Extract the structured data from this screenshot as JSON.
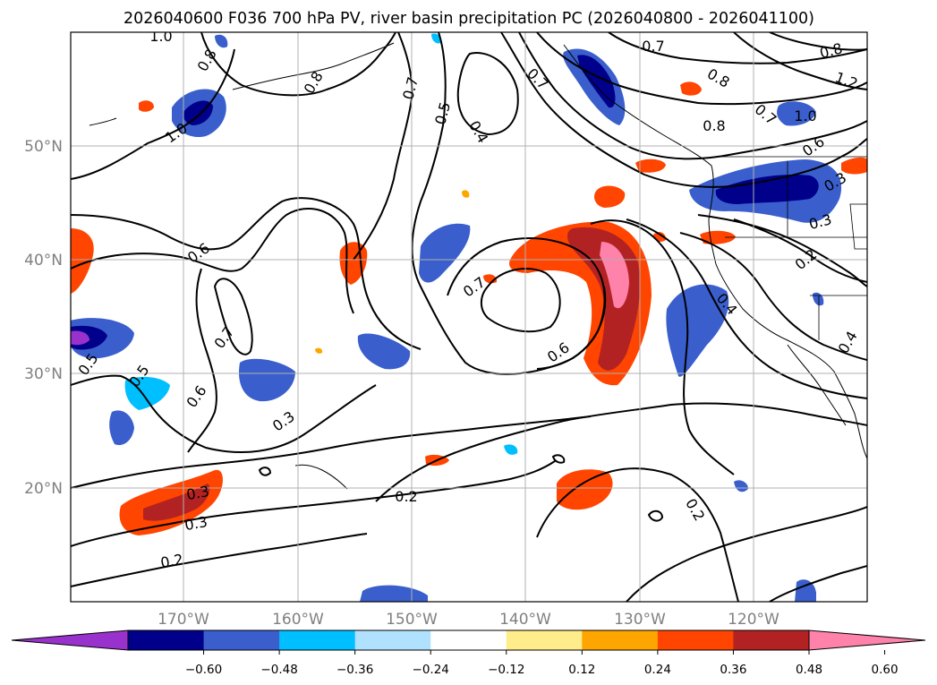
{
  "title": "2026040600 F036 700 hPa PV, river basin precipitation PC (2026040800 - 2026041100)",
  "map": {
    "lat_labels": [
      "50°N",
      "40°N",
      "30°N",
      "20°N"
    ],
    "lon_labels": [
      "170°W",
      "160°W",
      "150°W",
      "140°W",
      "130°W",
      "120°W"
    ],
    "contour_labels": [
      "1.0",
      "0.8",
      "0.8",
      "0.7",
      "0.5",
      "0.4",
      "0.7",
      "0.7",
      "0.8",
      "0.8",
      "0.7",
      "1.2",
      "1.0",
      "0.6",
      "0.8",
      "1.0",
      "0.6",
      "0.7",
      "0.5",
      "0.5",
      "0.6",
      "0.3",
      "0.7",
      "0.6",
      "0.4",
      "0.3",
      "0.2",
      "0.4",
      "0.3",
      "0.3",
      "0.2",
      "0.2",
      "0.2",
      "0.3"
    ]
  },
  "colorbar": {
    "tick_labels": [
      "−0.60",
      "−0.48",
      "−0.36",
      "−0.24",
      "−0.12",
      "0.12",
      "0.24",
      "0.36",
      "0.48",
      "0.60"
    ],
    "colors": [
      "#9932cc",
      "#00008b",
      "#3a5fcd",
      "#00bfff",
      "#b0e2ff",
      "#ffffff",
      "#ffec8b",
      "#ffa500",
      "#ff4500",
      "#b22222",
      "#ff82ab"
    ]
  }
}
